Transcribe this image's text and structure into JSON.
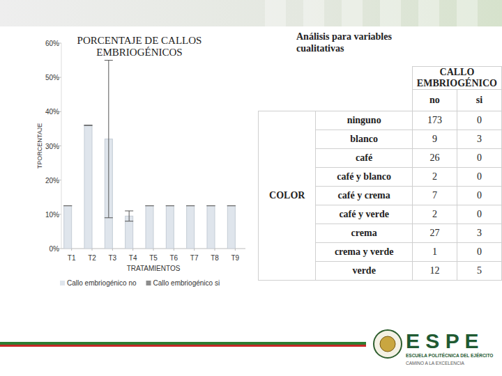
{
  "chart_data": {
    "type": "bar",
    "title": "PORCENTAJE DE CALLOS EMBRIOGÉNICOS",
    "x_label": "TRATAMIENTOS",
    "y_label": "TPORCENTAJE",
    "categories": [
      "T1",
      "T2",
      "T3",
      "T4",
      "T5",
      "T6",
      "T7",
      "T8",
      "T9"
    ],
    "series": [
      {
        "name": "Callo embriogénico no",
        "color": "#dfe5ec",
        "values": [
          12.5,
          36,
          32,
          9.5,
          12.5,
          12.5,
          12.5,
          12.5,
          12.5
        ],
        "error": [
          0,
          0,
          23,
          1.5,
          0,
          0,
          0,
          0,
          0
        ]
      },
      {
        "name": "Callo embriogénico si",
        "color": "#8c8c8c",
        "values": [
          null,
          null,
          null,
          null,
          null,
          null,
          null,
          null,
          null
        ]
      }
    ],
    "ylim": [
      0,
      60
    ],
    "yticks": [
      {
        "value": 0,
        "label": "0%"
      },
      {
        "value": 10,
        "label": "10%"
      },
      {
        "value": 20,
        "label": "20%"
      },
      {
        "value": 30,
        "label": "30%"
      },
      {
        "value": 40,
        "label": "40%"
      },
      {
        "value": 50,
        "label": "50%"
      },
      {
        "value": 60,
        "label": "60%"
      }
    ],
    "grid": false,
    "legend": "bottom"
  },
  "slide": {
    "heading": "Análisis para variables cualitativas",
    "table": {
      "group_label": "CALLO EMBRIOGÉNICO",
      "row_group": "COLOR",
      "columns": [
        "no",
        "si"
      ],
      "rows": [
        [
          "ninguno",
          173,
          0
        ],
        [
          "blanco",
          9,
          3
        ],
        [
          "café",
          26,
          0
        ],
        [
          "café y blanco",
          2,
          0
        ],
        [
          "café y crema",
          7,
          0
        ],
        [
          "café y verde",
          2,
          0
        ],
        [
          "crema",
          27,
          3
        ],
        [
          "crema y verde",
          1,
          0
        ],
        [
          "verde",
          12,
          5
        ]
      ]
    },
    "logo": {
      "name": "E S P E",
      "institution": "ESCUELA POLITÉCNICA DEL EJÉRCITO",
      "motto": "CAMINO A LA EXCELENCIA"
    }
  }
}
